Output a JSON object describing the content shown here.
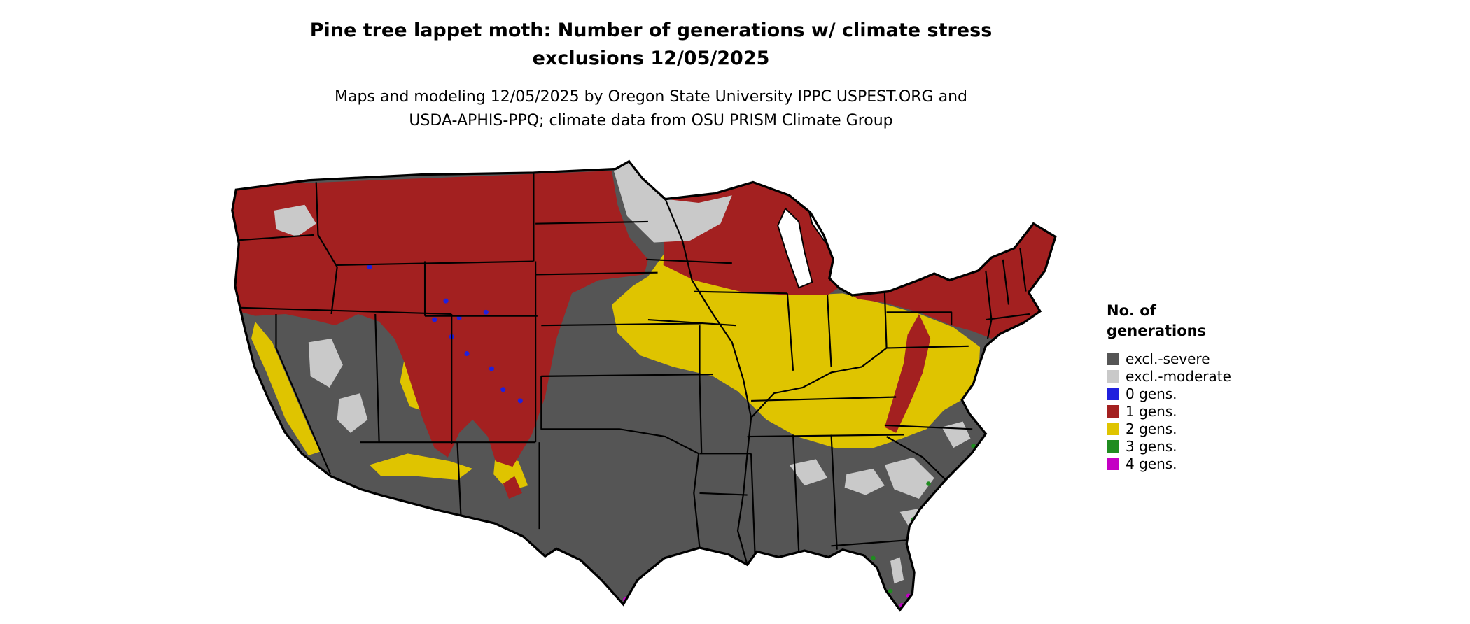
{
  "header": {
    "title_line1": "Pine tree lappet moth: Number of generations w/ climate stress",
    "title_line2": "exclusions 12/05/2025",
    "subtitle_line1": "Maps and modeling 12/05/2025 by Oregon State University IPPC USPEST.ORG and",
    "subtitle_line2": "USDA-APHIS-PPQ; climate data from OSU PRISM Climate Group"
  },
  "legend": {
    "title_line1": "No. of",
    "title_line2": "generations",
    "items": [
      {
        "key": "excl-severe",
        "label": "excl.-severe",
        "color": "#555555"
      },
      {
        "key": "excl-moderate",
        "label": "excl.-moderate",
        "color": "#c9c9c9"
      },
      {
        "key": "gens0",
        "label": "0 gens.",
        "color": "#2020dd"
      },
      {
        "key": "gens1",
        "label": "1 gens.",
        "color": "#a32020"
      },
      {
        "key": "gens2",
        "label": "2 gens.",
        "color": "#dfc400"
      },
      {
        "key": "gens3",
        "label": "3 gens.",
        "color": "#1f8c1f"
      },
      {
        "key": "gens4",
        "label": "4 gens.",
        "color": "#c400c4"
      }
    ]
  },
  "map": {
    "area": "Continental United States",
    "date_shown": "12/05/2025",
    "categories_shown": [
      "excl.-severe",
      "excl.-moderate",
      "0 gens.",
      "1 gens.",
      "2 gens.",
      "3 gens.",
      "4 gens."
    ],
    "pattern_summary": {
      "1_gens_dark_red": "Northern tier: Pacific Northwest, northern Rockies, Montana, Wyoming, Colorado mountains, Dakotas, upper Great Lakes, Michigan, upstate New York and New England, plus a tongue along the central Appalachians",
      "2_gens_yellow": "Central belt: Nebraska, Iowa, Illinois, Indiana, Ohio, southern Pennsylvania, Mid-Atlantic, Kentucky and Virginia, with mountain/coast fringes in California, Arizona and New Mexico",
      "excl_severe_dark_gray": "Southern and southwestern US: central/southern California, Great Basin, Texas, Oklahoma, lower Mississippi valley, Deep South and Florida",
      "excl_moderate_light_gray": "Northeastern Minnesota and northern Wisconsin, central Washington, scattered interior-West basins, and the Southeast coastal plain",
      "0_gens_blue": "Small high-elevation pockets in the Rockies and Idaho mountains",
      "3_gens_green": "Tiny scattered pockets along the Gulf Coast and southern Atlantic coast",
      "4_gens_magenta": "Tiny pockets in far south Florida and south Texas"
    }
  }
}
